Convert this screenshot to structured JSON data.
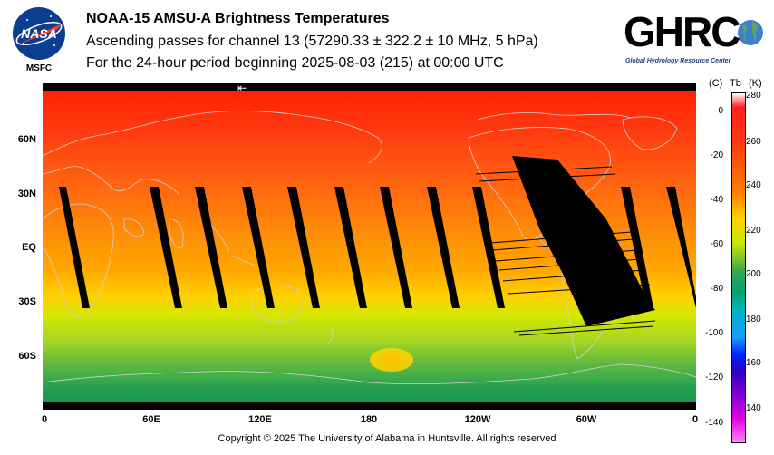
{
  "header": {
    "title": "NOAA-15 AMSU-A Brightness Temperatures",
    "subtitle": "Ascending passes for channel 13 (57290.33 ± 322.2 ± 10 MHz, 5 hPa)",
    "period": "For the 24-hour period beginning 2025-08-03 (215) at 00:00 UTC"
  },
  "logos": {
    "nasa_text": "NASA",
    "nasa_sub": "MSFC",
    "ghrc_text": "GHRC",
    "ghrc_sub": "Global Hydrology Resource Center"
  },
  "map": {
    "lat_labels": [
      "60N",
      "30N",
      "EQ",
      "30S",
      "60S"
    ],
    "lon_labels": [
      "0",
      "60E",
      "120E",
      "180",
      "120W",
      "60W",
      "0"
    ],
    "orbit_direction": "⇤"
  },
  "colorbar": {
    "header_c": "(C)",
    "header_tb": "Tb",
    "header_k": "(K)",
    "celsius_ticks": [
      "0",
      "-20",
      "-40",
      "-60",
      "-80",
      "-100",
      "-120",
      "-140"
    ],
    "kelvin_ticks": [
      "280",
      "260",
      "240",
      "220",
      "200",
      "180",
      "160",
      "140"
    ],
    "range_k": [
      132,
      282
    ]
  },
  "footer": {
    "copyright": "Copyright © 2025 The University of Alabama in Huntsville.  All rights reserved"
  },
  "colors": {
    "polar_north": "#ff2a10",
    "tropics": "#ff9a00",
    "southern_mid": "#d0e800",
    "antarctic": "#2aa050",
    "swath_gap": "#000000",
    "coastline": "#c8c8c8"
  }
}
